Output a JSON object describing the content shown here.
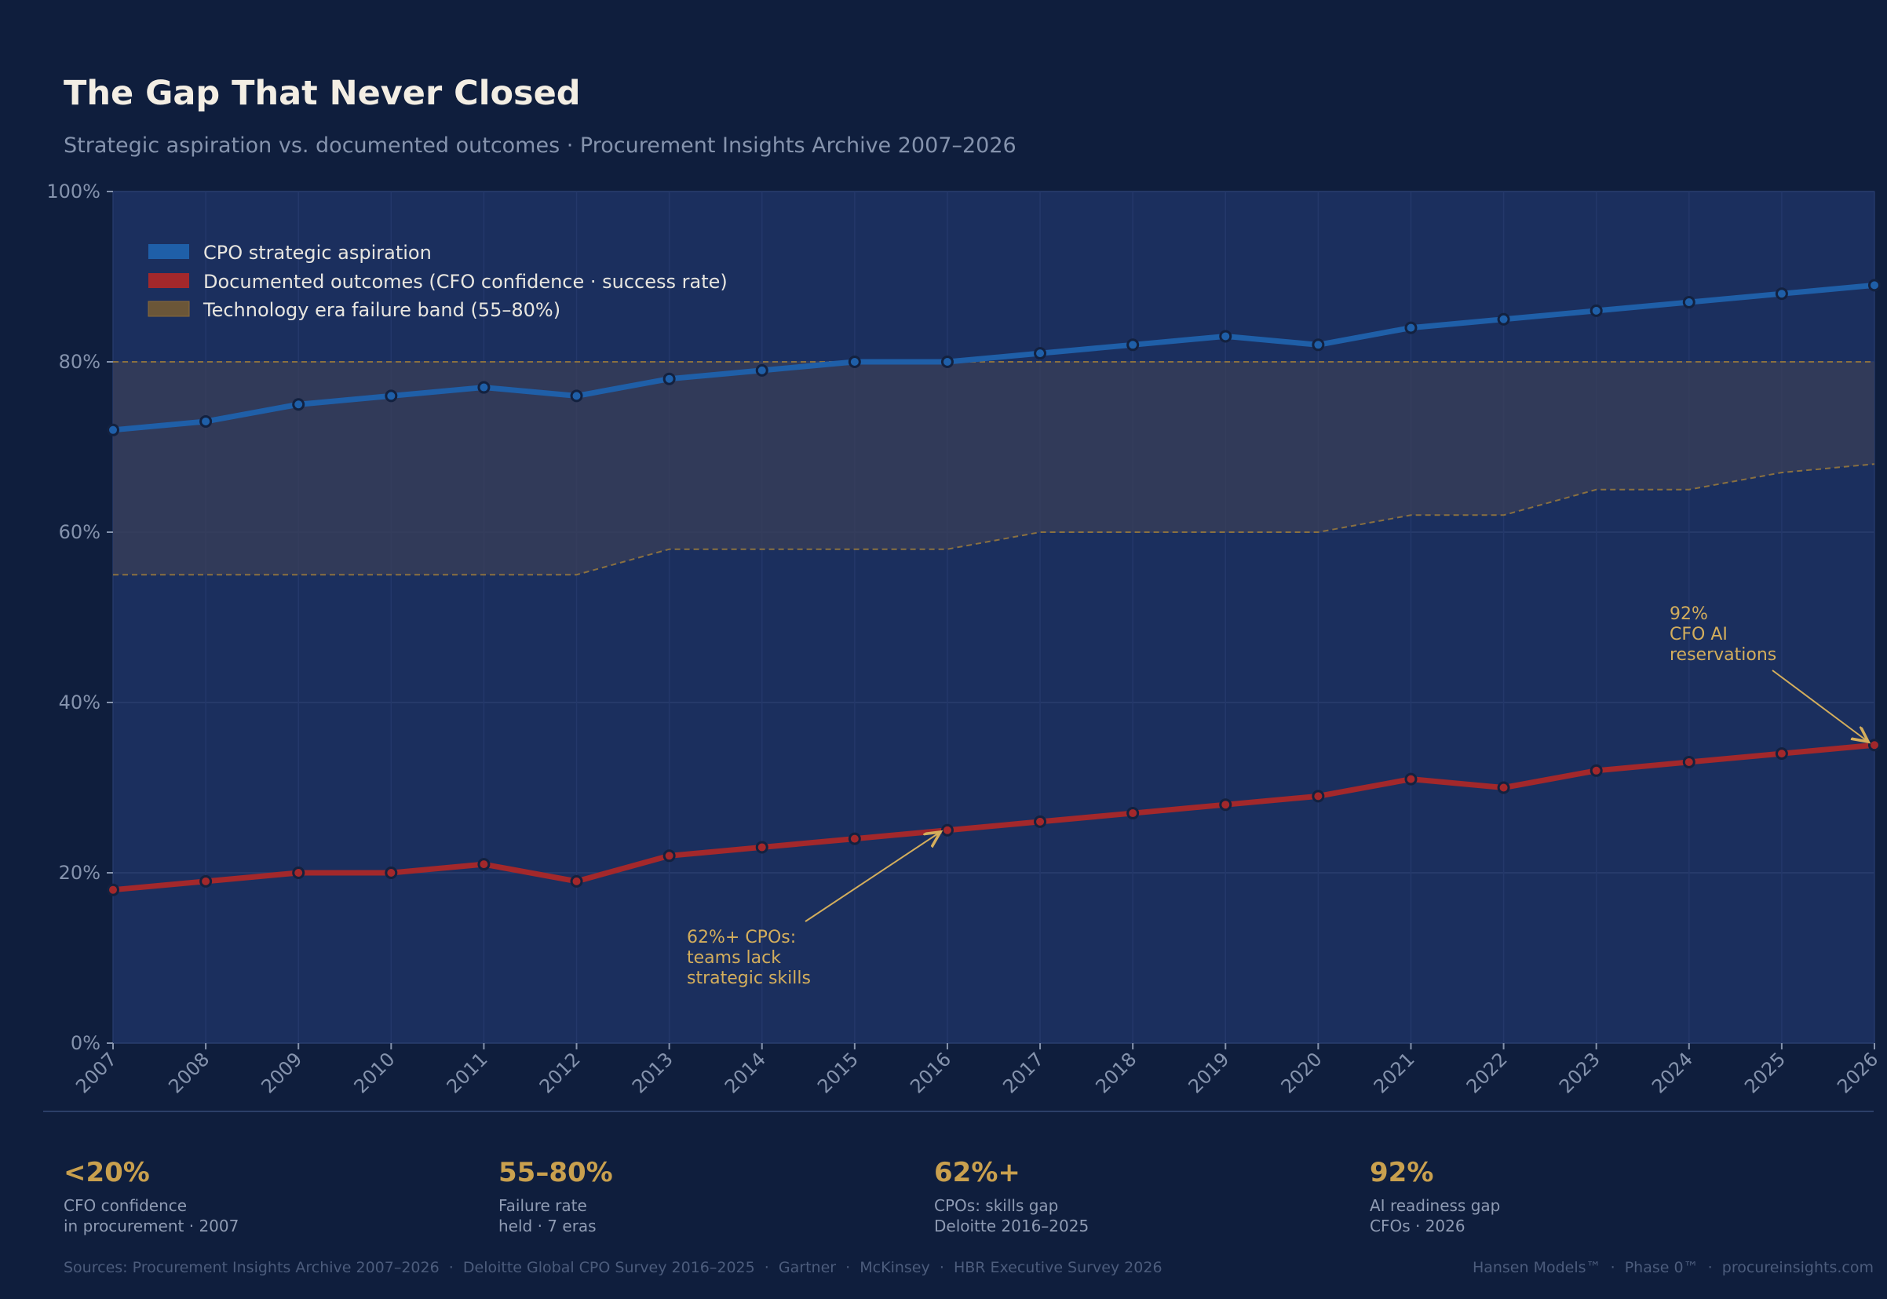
{
  "header": {
    "title": "The Gap That Never Closed",
    "subtitle": "Strategic aspiration vs. documented outcomes · Procurement Insights Archive 2007–2026"
  },
  "colors": {
    "background": "#0f1e3d",
    "plot_background": "#1b2f5e",
    "aspiration": "#1f5fa8",
    "outcomes": "#a3282b",
    "band_fill": "#3a3f58",
    "band_edge": "#8a7040",
    "accent": "#c9a04e"
  },
  "chart_data": {
    "type": "line",
    "x": [
      "2007",
      "2008",
      "2009",
      "2010",
      "2011",
      "2012",
      "2013",
      "2014",
      "2015",
      "2016",
      "2017",
      "2018",
      "2019",
      "2020",
      "2021",
      "2022",
      "2023",
      "2024",
      "2025",
      "2026"
    ],
    "ylim": [
      0,
      100
    ],
    "yticks": [
      "0%",
      "20%",
      "40%",
      "60%",
      "80%",
      "100%"
    ],
    "ytick_values": [
      0,
      20,
      40,
      60,
      80,
      100
    ],
    "grid": true,
    "legend_position": "top-left",
    "series": [
      {
        "name": "CPO strategic aspiration",
        "values": [
          72,
          73,
          75,
          76,
          77,
          76,
          78,
          79,
          80,
          80,
          81,
          82,
          83,
          82,
          84,
          85,
          86,
          87,
          88,
          89
        ]
      },
      {
        "name": "Documented outcomes (CFO confidence · success rate)",
        "values": [
          18,
          19,
          20,
          20,
          21,
          19,
          22,
          23,
          24,
          25,
          26,
          27,
          28,
          29,
          31,
          30,
          32,
          33,
          34,
          35
        ]
      }
    ],
    "band": {
      "name": "Technology era failure band (55–80%)",
      "lower": [
        55,
        55,
        55,
        55,
        55,
        55,
        58,
        58,
        58,
        58,
        60,
        60,
        60,
        60,
        62,
        62,
        65,
        65,
        67,
        68
      ],
      "upper": [
        80,
        80,
        80,
        80,
        80,
        80,
        80,
        80,
        80,
        80,
        80,
        80,
        80,
        80,
        80,
        80,
        80,
        80,
        80,
        80
      ]
    },
    "annotations": [
      {
        "lines": [
          "62%+ CPOs:",
          "teams lack",
          "strategic skills"
        ],
        "target_x": "2016",
        "target_y": 25
      },
      {
        "lines": [
          "92%",
          "CFO AI",
          "reservations"
        ],
        "target_x": "2026",
        "target_y": 35
      }
    ]
  },
  "stats": [
    {
      "value": "<20%",
      "line1": "CFO confidence",
      "line2": "in procurement · 2007"
    },
    {
      "value": "55–80%",
      "line1": "Failure rate",
      "line2": "held · 7 eras"
    },
    {
      "value": "62%+",
      "line1": "CPOs: skills gap",
      "line2": "Deloitte 2016–2025"
    },
    {
      "value": "92%",
      "line1": "AI readiness gap",
      "line2": "CFOs · 2026"
    }
  ],
  "footer": {
    "sources": "Sources: Procurement Insights Archive 2007–2026  ·  Deloitte Global CPO Survey 2016–2025  ·  Gartner  ·  McKinsey  ·  HBR Executive Survey 2026",
    "brand": "Hansen Models™  ·  Phase 0™  ·  procureinsights.com"
  }
}
